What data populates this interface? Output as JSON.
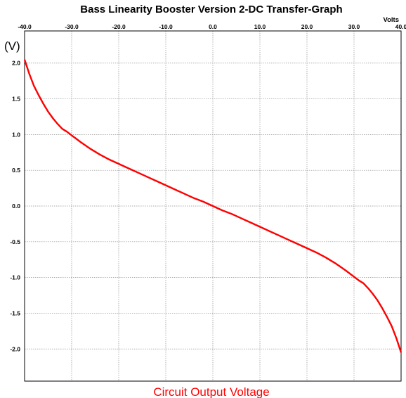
{
  "chart_data": {
    "type": "line",
    "title": "Bass Linearity Booster Version 2-DC Transfer-Graph",
    "xlabel": "Circuit Output Voltage",
    "x_unit": "Volts",
    "y_unit": "(V)",
    "xlim": [
      -40,
      40
    ],
    "ylim": [
      -2.45,
      2.45
    ],
    "x_ticks": [
      "-40.0",
      "-30.0",
      "-20.0",
      "-10.0",
      "0.0",
      "10.0",
      "20.0",
      "30.0",
      "40.0"
    ],
    "y_ticks": [
      "2.0",
      "1.5",
      "1.0",
      "0.5",
      "0.0",
      "-0.5",
      "-1.0",
      "-1.5",
      "-2.0"
    ],
    "grid": true,
    "series_color": "#ff0000",
    "series": [
      {
        "x": [
          -40,
          -39,
          -38,
          -37,
          -36,
          -35,
          -34,
          -33,
          -32,
          -31,
          -30,
          -28,
          -26,
          -24,
          -22,
          -20,
          -18,
          -16,
          -14,
          -12,
          -10,
          -8,
          -6,
          -4,
          -2,
          0,
          2,
          4,
          6,
          8,
          10,
          12,
          14,
          16,
          18,
          20,
          22,
          24,
          26,
          28,
          30,
          31,
          32,
          33,
          34,
          35,
          36,
          37,
          38,
          39,
          40
        ],
        "y": [
          2.05,
          1.85,
          1.68,
          1.55,
          1.43,
          1.32,
          1.23,
          1.15,
          1.08,
          1.04,
          0.99,
          0.89,
          0.8,
          0.72,
          0.65,
          0.59,
          0.53,
          0.47,
          0.41,
          0.35,
          0.29,
          0.23,
          0.17,
          0.11,
          0.06,
          0.0,
          -0.06,
          -0.11,
          -0.17,
          -0.23,
          -0.29,
          -0.35,
          -0.41,
          -0.47,
          -0.53,
          -0.59,
          -0.65,
          -0.72,
          -0.8,
          -0.89,
          -0.99,
          -1.04,
          -1.08,
          -1.15,
          -1.23,
          -1.32,
          -1.43,
          -1.55,
          -1.68,
          -1.85,
          -2.05
        ]
      }
    ]
  }
}
